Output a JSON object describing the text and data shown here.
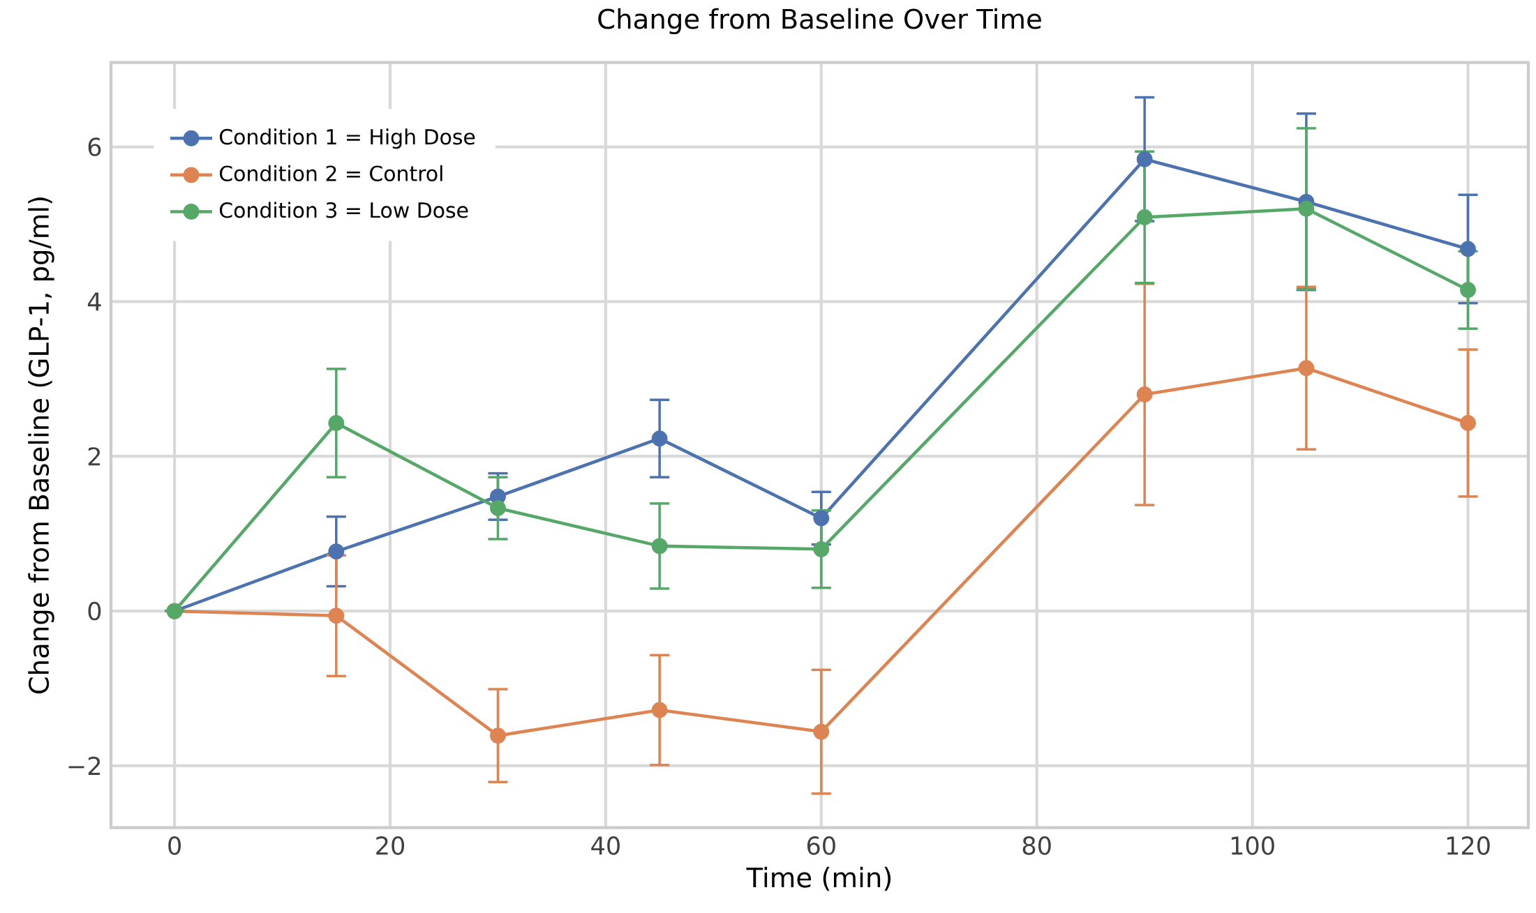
{
  "chart_data": {
    "type": "line",
    "title": "Change from Baseline Over Time",
    "xlabel": "Time (min)",
    "ylabel": "Change from Baseline (GLP-1, pg/ml)",
    "x": [
      0,
      15,
      30,
      45,
      60,
      90,
      105,
      120
    ],
    "series": [
      {
        "name": "Condition 1 = High Dose",
        "color": "#4c72b0",
        "values": [
          0,
          0.77,
          1.48,
          2.23,
          1.2,
          5.84,
          5.29,
          4.68
        ],
        "errors": [
          null,
          0.45,
          0.3,
          0.5,
          0.34,
          0.8,
          1.14,
          0.7
        ]
      },
      {
        "name": "Condition 2 = Control",
        "color": "#dd8452",
        "values": [
          0,
          -0.06,
          -1.61,
          -1.28,
          -1.56,
          2.8,
          3.14,
          2.43
        ],
        "errors": [
          null,
          0.78,
          0.6,
          0.71,
          0.8,
          1.43,
          1.05,
          0.95
        ]
      },
      {
        "name": "Condition 3 = Low Dose",
        "color": "#55a868",
        "values": [
          0,
          2.43,
          1.33,
          0.84,
          0.8,
          5.09,
          5.2,
          4.15
        ],
        "errors": [
          null,
          0.7,
          0.4,
          0.55,
          0.5,
          0.85,
          1.04,
          0.5
        ]
      }
    ],
    "xlim": [
      -5.9,
      125.6
    ],
    "ylim": [
      -2.8,
      7.09
    ],
    "xticks": [
      0,
      20,
      40,
      60,
      80,
      100,
      120
    ],
    "yticks": [
      {
        "value": -2,
        "label": "−2"
      },
      0,
      2,
      4,
      6
    ],
    "grid": true,
    "legend": "top left",
    "marker": "circle",
    "line_style": "solid"
  }
}
